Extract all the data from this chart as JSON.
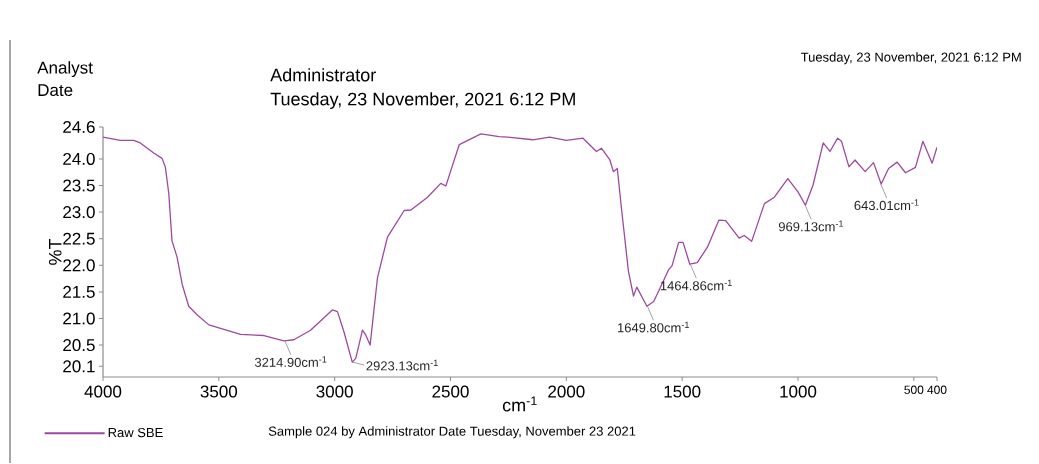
{
  "chart_data": {
    "type": "line",
    "title": "Administrator",
    "subtitle": "Tuesday, 23 November, 2021 6:12 PM",
    "xlabel": "cm$^{-1}$",
    "ylabel": "%T",
    "xlim": [
      4000,
      400
    ],
    "ylim": [
      19.9,
      24.6
    ],
    "xticks": [
      4000,
      3500,
      3000,
      2500,
      2000,
      1500,
      1000,
      500,
      400
    ],
    "yticks": [
      24.6,
      {
        "value": 24.0,
        "label": "24.0"
      },
      23.5,
      {
        "value": 23.0,
        "label": "23.0"
      },
      22.5,
      {
        "value": 22.0,
        "label": "22.0"
      },
      21.5,
      {
        "value": 21.0,
        "label": "21.0"
      },
      20.5,
      20.1
    ],
    "legend": "bottom left",
    "grid": false,
    "series": [
      {
        "name": "Raw SBE",
        "color": "#9c4a9f",
        "x": [
          4000,
          3925,
          3867,
          3839,
          3781,
          3745,
          3731,
          3716,
          3702,
          3680,
          3658,
          3630,
          3594,
          3543,
          3406,
          3305,
          3219,
          3176,
          3104,
          3010,
          2988,
          2960,
          2924,
          2909,
          2880,
          2866,
          2847,
          2815,
          2772,
          2700,
          2671,
          2599,
          2542,
          2520,
          2498,
          2462,
          2369,
          2290,
          2253,
          2145,
          2072,
          2000,
          1928,
          1870,
          1848,
          1812,
          1797,
          1780,
          1761,
          1732,
          1710,
          1696,
          1652,
          1623,
          1587,
          1558,
          1544,
          1515,
          1496,
          1467,
          1435,
          1391,
          1341,
          1312,
          1254,
          1232,
          1200,
          1145,
          1102,
          1044,
          1000,
          968,
          935,
          891,
          862,
          829,
          812,
          780,
          754,
          710,
          674,
          641,
          609,
          572,
          536,
          493,
          461,
          421,
          400
        ],
        "values": [
          24.41,
          24.35,
          24.35,
          24.3,
          24.11,
          24.01,
          23.85,
          23.35,
          22.46,
          22.15,
          21.64,
          21.23,
          21.07,
          20.88,
          20.7,
          20.68,
          20.58,
          20.6,
          20.78,
          21.16,
          21.13,
          20.75,
          20.18,
          20.25,
          20.78,
          20.69,
          20.5,
          21.77,
          22.53,
          23.03,
          23.04,
          23.28,
          23.54,
          23.49,
          23.79,
          24.27,
          24.47,
          24.42,
          24.41,
          24.36,
          24.41,
          24.35,
          24.39,
          24.14,
          24.2,
          23.98,
          23.76,
          23.82,
          23.03,
          21.89,
          21.42,
          21.59,
          21.23,
          21.32,
          21.65,
          21.92,
          21.99,
          22.43,
          22.43,
          22.02,
          22.05,
          22.34,
          22.85,
          22.84,
          22.51,
          22.56,
          22.45,
          23.16,
          23.28,
          23.63,
          23.38,
          23.13,
          23.51,
          24.3,
          24.14,
          24.39,
          24.33,
          23.85,
          23.98,
          23.76,
          23.93,
          23.53,
          23.82,
          23.94,
          23.74,
          23.84,
          24.33,
          23.92,
          24.22
        ]
      }
    ],
    "annotations": [
      "Analyst",
      "Date",
      "Tuesday, 23 November, 2021 6:12 PM",
      "Sample 024 by Administrator Date Tuesday, November 23 2021",
      {
        "text": "3214.90cm$^{-1}$",
        "x": 3214.9,
        "y": 20.58
      },
      {
        "text": "2923.13cm$^{-1}$",
        "x": 2923.13,
        "y": 20.18
      },
      {
        "text": "1649.80cm$^{-1}$",
        "x": 1649.8,
        "y": 21.23
      },
      {
        "text": "1464.86cm$^{-1}$",
        "x": 1464.86,
        "y": 22.02
      },
      {
        "text": "969.13cm$^{-1}$",
        "x": 969.13,
        "y": 23.13
      },
      {
        "text": "643.01cm$^{-1}$",
        "x": 643.01,
        "y": 23.53
      }
    ]
  }
}
